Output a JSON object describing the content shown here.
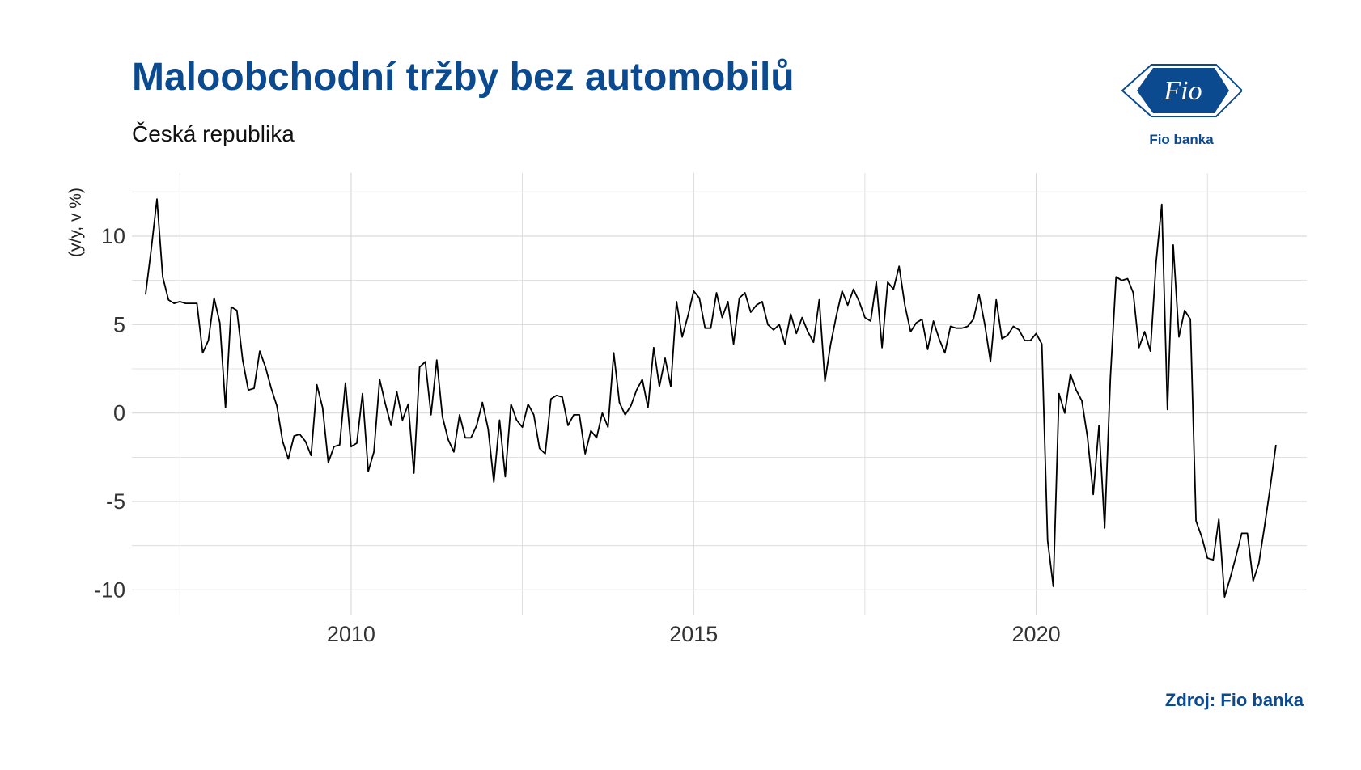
{
  "header": {
    "title": "Maloobchodní tržby bez automobilů",
    "subtitle": "Česká republika"
  },
  "logo": {
    "mark_text": "Fio",
    "name": "Fio banka"
  },
  "footer": {
    "source": "Zdroj: Fio banka"
  },
  "colors": {
    "brand": "#0b4a8f",
    "line": "#000000",
    "grid": "#d9d9d9"
  },
  "chart_data": {
    "type": "line",
    "title": "Maloobchodní tržby bez automobilů",
    "subtitle": "Česká republika",
    "xlabel": "",
    "ylabel": "(y/y, v %)",
    "x_ticks": [
      2010,
      2015,
      2020
    ],
    "y_ticks": [
      10,
      5,
      0,
      -5,
      -10
    ],
    "y_tick_labels": [
      "10",
      "5",
      "0",
      "-5",
      "-10"
    ],
    "xlim": [
      2006.8,
      2023.95
    ],
    "ylim": [
      -11.4,
      13.2
    ],
    "grid": true,
    "x_start": "2007-01",
    "frequency": "monthly",
    "series": [
      {
        "values": [
          6.7,
          9.3,
          12.1,
          7.7,
          6.4,
          6.2,
          6.3,
          6.2,
          6.2,
          6.2,
          3.4,
          4.1,
          6.5,
          5.1,
          0.3,
          6.0,
          5.8,
          3.0,
          1.3,
          1.4,
          3.5,
          2.6,
          1.4,
          0.4,
          -1.6,
          -2.6,
          -1.3,
          -1.2,
          -1.6,
          -2.4,
          1.6,
          0.3,
          -2.8,
          -1.9,
          -1.8,
          1.7,
          -1.9,
          -1.7,
          1.1,
          -3.3,
          -2.2,
          1.9,
          0.5,
          -0.7,
          1.2,
          -0.4,
          0.5,
          -3.4,
          2.6,
          2.9,
          -0.1,
          3.0,
          -0.2,
          -1.5,
          -2.2,
          -0.1,
          -1.4,
          -1.4,
          -0.7,
          0.6,
          -0.9,
          -3.9,
          -0.4,
          -3.6,
          0.5,
          -0.4,
          -0.8,
          0.5,
          -0.1,
          -2.0,
          -2.3,
          0.8,
          1.0,
          0.9,
          -0.7,
          -0.1,
          -0.1,
          -2.3,
          -1.0,
          -1.4,
          0.0,
          -0.8,
          3.4,
          0.6,
          -0.1,
          0.4,
          1.3,
          1.9,
          0.3,
          3.7,
          1.5,
          3.1,
          1.5,
          6.3,
          4.3,
          5.5,
          6.9,
          6.5,
          4.8,
          4.8,
          6.8,
          5.4,
          6.3,
          3.9,
          6.5,
          6.8,
          5.7,
          6.1,
          6.3,
          5.0,
          4.7,
          5.0,
          3.9,
          5.6,
          4.5,
          5.4,
          4.6,
          4.0,
          6.4,
          1.8,
          3.9,
          5.5,
          6.9,
          6.1,
          7.0,
          6.3,
          5.4,
          5.2,
          7.4,
          3.7,
          7.4,
          7.0,
          8.3,
          6.1,
          4.6,
          5.1,
          5.3,
          3.6,
          5.2,
          4.2,
          3.4,
          4.9,
          4.8,
          4.8,
          4.9,
          5.3,
          6.7,
          5.0,
          2.9,
          6.4,
          4.2,
          4.4,
          4.9,
          4.7,
          4.1,
          4.1,
          4.5,
          3.9,
          -7.2,
          -9.8,
          1.1,
          0.0,
          2.2,
          1.3,
          0.7,
          -1.4,
          -4.6,
          -0.7,
          -6.5,
          2.0,
          7.7,
          7.5,
          7.6,
          6.8,
          3.7,
          4.6,
          3.5,
          8.5,
          11.8,
          0.2,
          9.5,
          4.3,
          5.8,
          5.3,
          -6.1,
          -7.0,
          -8.2,
          -8.3,
          -6.0,
          -10.4,
          -9.3,
          -8.1,
          -6.8,
          -6.8,
          -9.5,
          -8.5,
          -6.4,
          -4.2,
          -1.8
        ]
      }
    ]
  }
}
